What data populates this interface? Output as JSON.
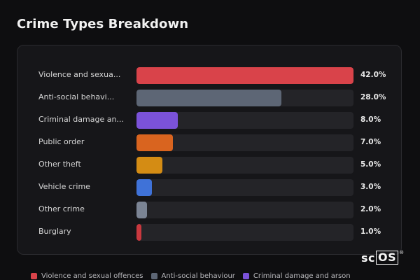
{
  "title": "Crime Types Breakdown",
  "chart_data": {
    "type": "bar",
    "orientation": "horizontal",
    "categories": [
      "Violence and sexua...",
      "Anti-social behavi...",
      "Criminal damage an...",
      "Public order",
      "Other theft",
      "Vehicle crime",
      "Other crime",
      "Burglary"
    ],
    "values": [
      42.0,
      28.0,
      8.0,
      7.0,
      5.0,
      3.0,
      2.0,
      1.0
    ],
    "value_labels": [
      "42.0%",
      "28.0%",
      "8.0%",
      "7.0%",
      "5.0%",
      "3.0%",
      "2.0%",
      "1.0%"
    ],
    "colors": [
      "#d9434a",
      "#5d6675",
      "#7b52d9",
      "#d9641f",
      "#d48c14",
      "#3f72d8",
      "#7b8494",
      "#c9383e"
    ],
    "max_value": 42.0,
    "legend_placement": "bottom",
    "grid": false
  },
  "legend": [
    {
      "label": "Violence and sexual offences",
      "color": "#d9434a"
    },
    {
      "label": "Anti-social behaviour",
      "color": "#5d6675"
    },
    {
      "label": "Criminal damage and arson",
      "color": "#7b52d9"
    }
  ],
  "logo": {
    "text_plain": "sc",
    "text_boxed": "OS",
    "mark": "®"
  }
}
